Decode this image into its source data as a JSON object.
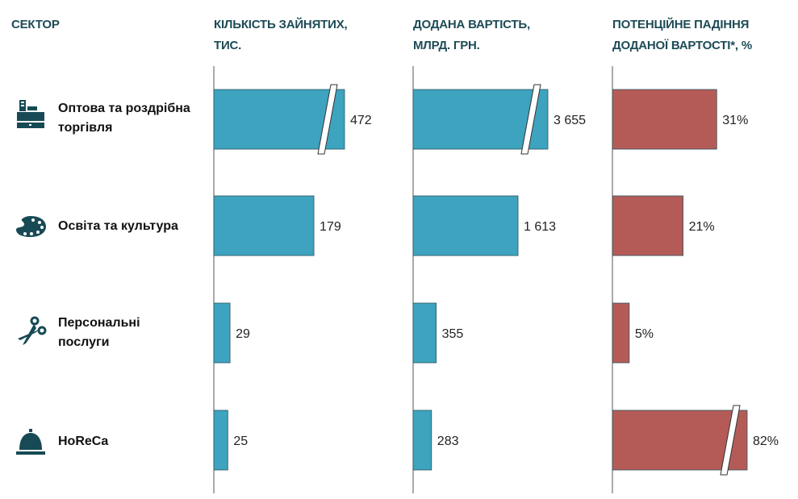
{
  "headers": {
    "sector": "СЕКТОР",
    "col1": [
      "КІЛЬКІСТЬ ЗАЙНЯТИХ,",
      "ТИС."
    ],
    "col2": [
      "ДОДАНА ВАРТІСТЬ,",
      "МЛРД. ГРН."
    ],
    "col3": [
      "ПОТЕНЦІЙНЕ ПАДІННЯ",
      "ДОДАНОЇ ВАРТОСТІ*, %"
    ]
  },
  "colors": {
    "header": "#1d4b56",
    "blue": "#3da3be",
    "red": "#b55b57",
    "icon": "#174a55"
  },
  "chart_data": {
    "type": "bar",
    "orientation": "horizontal",
    "categories": [
      {
        "label": [
          "Оптова та роздрібна",
          "торгівля"
        ],
        "icon": "cash-register-icon"
      },
      {
        "label": [
          "Освіта та культура"
        ],
        "icon": "palette-icon"
      },
      {
        "label": [
          "Персональні",
          "послуги"
        ],
        "icon": "scissors-icon"
      },
      {
        "label": [
          "HoReCa"
        ],
        "icon": "service-bell-icon"
      }
    ],
    "series": [
      {
        "name": "КІЛЬКІСТЬ ЗАЙНЯТИХ, ТИС.",
        "color": "#3da3be",
        "values": [
          472,
          179,
          29,
          25
        ],
        "labels": [
          "472",
          "179",
          "29",
          "25"
        ],
        "broken": [
          true,
          false,
          false,
          false
        ]
      },
      {
        "name": "ДОДАНА ВАРТІСТЬ, МЛРД. ГРН.",
        "color": "#3da3be",
        "values": [
          3655,
          1613,
          355,
          283
        ],
        "labels": [
          "3 655",
          "1 613",
          "355",
          "283"
        ],
        "broken": [
          true,
          false,
          false,
          false
        ]
      },
      {
        "name": "ПОТЕНЦІЙНЕ ПАДІННЯ ДОДАНОЇ ВАРТОСТІ*, %",
        "color": "#b55b57",
        "values": [
          31,
          21,
          5,
          82
        ],
        "labels": [
          "31%",
          "21%",
          "5%",
          "82%"
        ],
        "broken": [
          false,
          false,
          false,
          true
        ]
      }
    ]
  }
}
